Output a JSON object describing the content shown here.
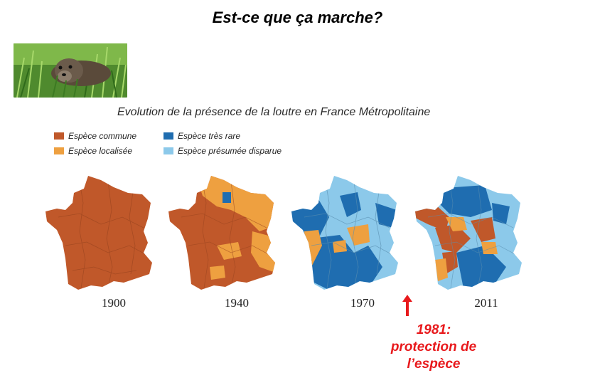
{
  "slide": {
    "title": "Est-ce que ça marche?"
  },
  "photo": {
    "icon": "otter-photo"
  },
  "figure": {
    "title": "Evolution de la présence de la loutre en France Métropolitaine",
    "legend": [
      {
        "label": "Espèce commune",
        "color": "#c0582a"
      },
      {
        "label": "Espèce localisée",
        "color": "#eea040"
      },
      {
        "label": "Espèce très rare",
        "color": "#1f6db0"
      },
      {
        "label": "Espèce présumée disparue",
        "color": "#8cc9ea"
      }
    ],
    "maps": [
      {
        "year": "1900"
      },
      {
        "year": "1940"
      },
      {
        "year": "1970"
      },
      {
        "year": "2011"
      }
    ]
  },
  "annotation": {
    "line1": "1981:",
    "line2": "protection de",
    "line3": "l’espèce",
    "color": "#e8191c"
  }
}
